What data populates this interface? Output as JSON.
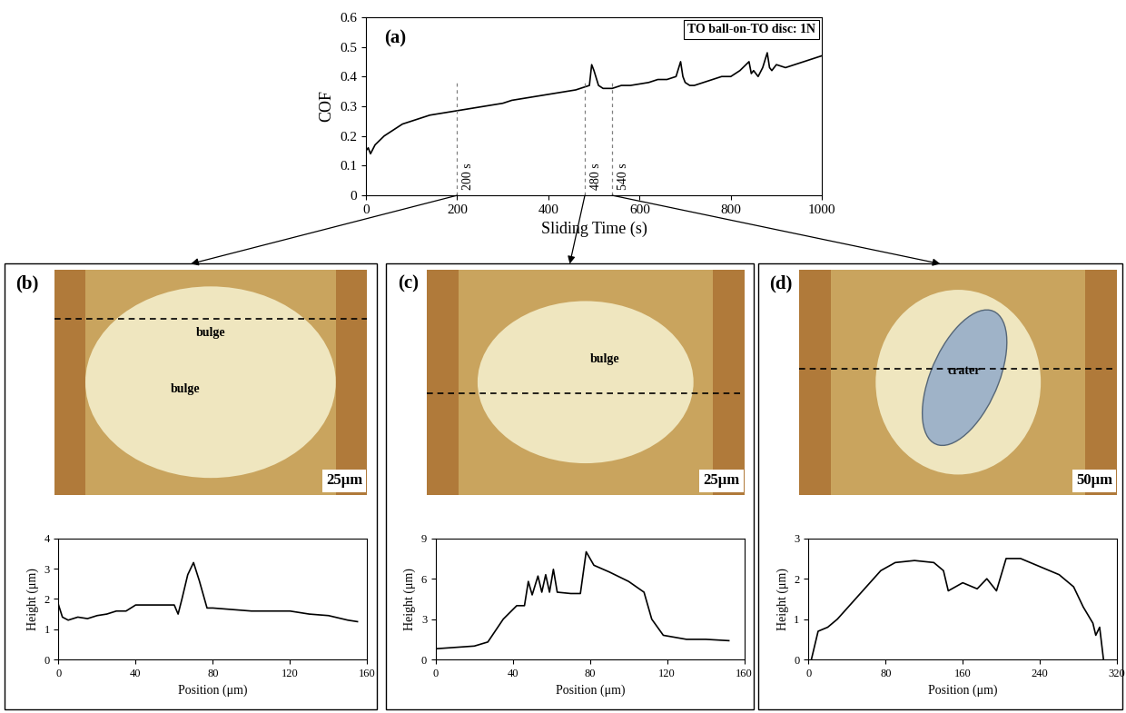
{
  "chart_data": [
    {
      "type": "line",
      "panel": "(a)",
      "xlabel": "Sliding Time (s)",
      "ylabel": "COF",
      "annotations": [
        "TO ball-on-TO disc: 1N"
      ],
      "markers": [
        {
          "x": 200,
          "label": "200 s"
        },
        {
          "x": 480,
          "label": "480 s"
        },
        {
          "x": 540,
          "label": "540 s"
        }
      ],
      "color": "#000000",
      "x": [
        0,
        5,
        10,
        20,
        40,
        60,
        80,
        100,
        120,
        140,
        160,
        180,
        200,
        220,
        240,
        260,
        280,
        300,
        320,
        340,
        360,
        380,
        400,
        420,
        440,
        460,
        480,
        490,
        495,
        500,
        510,
        520,
        540,
        560,
        580,
        600,
        620,
        640,
        660,
        680,
        690,
        695,
        700,
        710,
        720,
        740,
        760,
        780,
        800,
        820,
        840,
        845,
        850,
        860,
        870,
        880,
        885,
        890,
        900,
        920,
        940,
        960,
        980,
        1000
      ],
      "values": [
        0.15,
        0.16,
        0.14,
        0.17,
        0.2,
        0.22,
        0.24,
        0.25,
        0.26,
        0.27,
        0.275,
        0.28,
        0.285,
        0.29,
        0.295,
        0.3,
        0.305,
        0.31,
        0.32,
        0.325,
        0.33,
        0.335,
        0.34,
        0.345,
        0.35,
        0.355,
        0.365,
        0.37,
        0.44,
        0.42,
        0.37,
        0.36,
        0.36,
        0.37,
        0.37,
        0.375,
        0.38,
        0.39,
        0.39,
        0.4,
        0.45,
        0.4,
        0.38,
        0.37,
        0.37,
        0.38,
        0.39,
        0.4,
        0.4,
        0.42,
        0.45,
        0.41,
        0.42,
        0.4,
        0.43,
        0.48,
        0.43,
        0.42,
        0.44,
        0.43,
        0.44,
        0.45,
        0.46,
        0.47
      ],
      "xlim": [
        0,
        1000
      ],
      "xticks": [
        0,
        200,
        400,
        600,
        800,
        1000
      ],
      "ylim": [
        0,
        0.6
      ],
      "yticks": [
        0,
        0.1,
        0.2,
        0.3,
        0.4,
        0.5,
        0.6
      ]
    },
    {
      "type": "line",
      "panel": "(b)",
      "xlabel": "Position (μm)",
      "ylabel": "Height (μm)",
      "micrograph": {
        "labels": [
          "bulge",
          "bulge"
        ],
        "scale_bar": "25μm"
      },
      "color": "#000000",
      "x": [
        0,
        2,
        5,
        10,
        15,
        20,
        25,
        30,
        35,
        40,
        50,
        60,
        62,
        64,
        67,
        70,
        73,
        77,
        80,
        90,
        100,
        110,
        120,
        130,
        140,
        150,
        155
      ],
      "values": [
        1.8,
        1.4,
        1.3,
        1.4,
        1.35,
        1.45,
        1.5,
        1.6,
        1.6,
        1.8,
        1.8,
        1.8,
        1.5,
        2.0,
        2.8,
        3.2,
        2.6,
        1.7,
        1.7,
        1.65,
        1.6,
        1.6,
        1.6,
        1.5,
        1.45,
        1.3,
        1.25
      ],
      "xlim": [
        0,
        160
      ],
      "xticks": [
        0,
        40,
        80,
        120,
        160
      ],
      "ylim": [
        0,
        4
      ],
      "yticks": [
        0,
        1,
        2,
        3,
        4
      ]
    },
    {
      "type": "line",
      "panel": "(c)",
      "xlabel": "Position (μm)",
      "ylabel": "Height (μm)",
      "micrograph": {
        "labels": [
          "bulge"
        ],
        "scale_bar": "25μm"
      },
      "color": "#000000",
      "x": [
        0,
        10,
        20,
        27,
        35,
        42,
        46,
        48,
        50,
        53,
        55,
        57,
        59,
        61,
        63,
        70,
        75,
        78,
        82,
        90,
        100,
        108,
        112,
        118,
        130,
        140,
        152
      ],
      "values": [
        0.8,
        0.9,
        1.0,
        1.3,
        3.0,
        4.0,
        4.0,
        5.8,
        4.8,
        6.2,
        5.0,
        6.3,
        5.0,
        6.7,
        5.0,
        4.9,
        4.9,
        8.0,
        7.0,
        6.5,
        5.8,
        5.0,
        3.0,
        1.8,
        1.5,
        1.5,
        1.4
      ],
      "xlim": [
        0,
        160
      ],
      "xticks": [
        0,
        40,
        80,
        120,
        160
      ],
      "ylim": [
        0,
        9
      ],
      "yticks": [
        0,
        3,
        6,
        9
      ]
    },
    {
      "type": "line",
      "panel": "(d)",
      "xlabel": "Position (μm)",
      "ylabel": "Height (μm)",
      "micrograph": {
        "labels": [
          "crater"
        ],
        "scale_bar": "50μm"
      },
      "color": "#000000",
      "x": [
        3,
        10,
        20,
        30,
        45,
        60,
        75,
        90,
        110,
        130,
        140,
        145,
        160,
        175,
        185,
        195,
        205,
        220,
        240,
        260,
        275,
        285,
        295,
        298,
        302,
        306
      ],
      "values": [
        0,
        0.7,
        0.8,
        1.0,
        1.4,
        1.8,
        2.2,
        2.4,
        2.45,
        2.4,
        2.2,
        1.7,
        1.9,
        1.75,
        2.0,
        1.7,
        2.5,
        2.5,
        2.3,
        2.1,
        1.8,
        1.3,
        0.9,
        0.6,
        0.8,
        0
      ],
      "xlim": [
        0,
        320
      ],
      "xticks": [
        0,
        80,
        160,
        240,
        320
      ],
      "ylim": [
        0,
        3
      ],
      "yticks": [
        0,
        1,
        2,
        3
      ]
    }
  ]
}
